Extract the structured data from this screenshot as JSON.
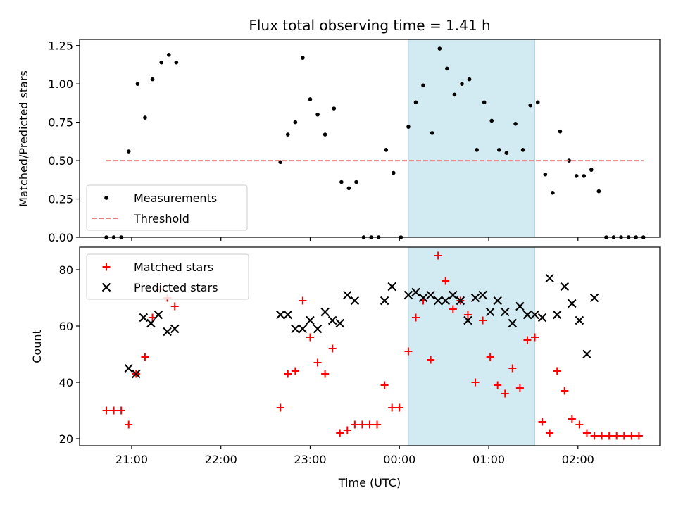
{
  "chart_data": [
    {
      "type": "scatter",
      "title": "Flux total observing time = 1.41 h",
      "xlabel": "",
      "ylabel": "Matched/Predicted stars",
      "xlim": [
        "20:25",
        "02:55"
      ],
      "ylim": [
        0,
        1.29
      ],
      "yticks": [
        "0.00",
        "0.25",
        "0.50",
        "0.75",
        "1.00",
        "1.25"
      ],
      "highlight_interval": [
        "00:06",
        "01:31"
      ],
      "highlight_color": "#add8e6",
      "legend_position": "lower-left",
      "series": [
        {
          "name": "Measurements",
          "marker": "dot",
          "color": "#000000",
          "points": [
            [
              "20:43",
              0.0
            ],
            [
              "20:48",
              0.0
            ],
            [
              "20:53",
              0.0
            ],
            [
              "20:58",
              0.56
            ],
            [
              "21:04",
              1.0
            ],
            [
              "21:09",
              0.78
            ],
            [
              "21:14",
              1.03
            ],
            [
              "21:20",
              1.14
            ],
            [
              "21:25",
              1.19
            ],
            [
              "21:30",
              1.14
            ],
            [
              "22:40",
              0.49
            ],
            [
              "22:45",
              0.67
            ],
            [
              "22:50",
              0.75
            ],
            [
              "22:55",
              1.17
            ],
            [
              "23:00",
              0.9
            ],
            [
              "23:05",
              0.8
            ],
            [
              "23:10",
              0.67
            ],
            [
              "23:16",
              0.84
            ],
            [
              "23:21",
              0.36
            ],
            [
              "23:26",
              0.32
            ],
            [
              "23:31",
              0.36
            ],
            [
              "23:36",
              0.0
            ],
            [
              "23:41",
              0.0
            ],
            [
              "23:46",
              0.0
            ],
            [
              "23:51",
              0.57
            ],
            [
              "23:56",
              0.42
            ],
            [
              "00:01",
              0.0
            ],
            [
              "00:06",
              0.72
            ],
            [
              "00:11",
              0.88
            ],
            [
              "00:16",
              0.99
            ],
            [
              "00:22",
              0.68
            ],
            [
              "00:27",
              1.23
            ],
            [
              "00:32",
              1.1
            ],
            [
              "00:37",
              0.93
            ],
            [
              "00:42",
              1.0
            ],
            [
              "00:47",
              1.03
            ],
            [
              "00:52",
              0.57
            ],
            [
              "00:57",
              0.88
            ],
            [
              "01:02",
              0.76
            ],
            [
              "01:07",
              0.57
            ],
            [
              "01:12",
              0.55
            ],
            [
              "01:18",
              0.74
            ],
            [
              "01:23",
              0.57
            ],
            [
              "01:28",
              0.86
            ],
            [
              "01:33",
              0.88
            ],
            [
              "01:38",
              0.41
            ],
            [
              "01:43",
              0.29
            ],
            [
              "01:48",
              0.69
            ],
            [
              "01:54",
              0.5
            ],
            [
              "01:59",
              0.4
            ],
            [
              "02:04",
              0.4
            ],
            [
              "02:09",
              0.44
            ],
            [
              "02:14",
              0.3
            ],
            [
              "02:19",
              0.0
            ],
            [
              "02:24",
              0.0
            ],
            [
              "02:29",
              0.0
            ],
            [
              "02:34",
              0.0
            ],
            [
              "02:39",
              0.0
            ],
            [
              "02:44",
              0.0
            ]
          ]
        },
        {
          "name": "Threshold",
          "line_style": "dashed",
          "color": "#f08080",
          "points": [
            [
              "20:43",
              0.5
            ],
            [
              "02:44",
              0.5
            ]
          ]
        }
      ]
    },
    {
      "type": "scatter",
      "title": "",
      "xlabel": "Time (UTC)",
      "ylabel": "Count",
      "xlim": [
        "20:25",
        "02:55"
      ],
      "ylim": [
        17.5,
        88
      ],
      "yticks": [
        "20",
        "40",
        "60",
        "80"
      ],
      "xticks": [
        "21:00",
        "22:00",
        "23:00",
        "00:00",
        "01:00",
        "02:00"
      ],
      "highlight_interval": [
        "00:06",
        "01:31"
      ],
      "highlight_color": "#add8e6",
      "legend_position": "upper-left",
      "series": [
        {
          "name": "Matched stars",
          "marker": "plus",
          "color": "#ff0000",
          "points": [
            [
              "20:43",
              30
            ],
            [
              "20:48",
              30
            ],
            [
              "20:53",
              30
            ],
            [
              "20:58",
              25
            ],
            [
              "21:03",
              43
            ],
            [
              "21:09",
              49
            ],
            [
              "21:14",
              63
            ],
            [
              "21:19",
              73
            ],
            [
              "21:24",
              70
            ],
            [
              "21:29",
              67
            ],
            [
              "22:40",
              31
            ],
            [
              "22:45",
              43
            ],
            [
              "22:50",
              44
            ],
            [
              "22:55",
              69
            ],
            [
              "23:00",
              56
            ],
            [
              "23:05",
              47
            ],
            [
              "23:10",
              43
            ],
            [
              "23:15",
              52
            ],
            [
              "23:20",
              22
            ],
            [
              "23:25",
              23
            ],
            [
              "23:30",
              25
            ],
            [
              "23:35",
              25
            ],
            [
              "23:40",
              25
            ],
            [
              "23:45",
              25
            ],
            [
              "23:50",
              39
            ],
            [
              "23:55",
              31
            ],
            [
              "00:00",
              31
            ],
            [
              "00:06",
              51
            ],
            [
              "00:11",
              63
            ],
            [
              "00:16",
              69
            ],
            [
              "00:21",
              48
            ],
            [
              "00:26",
              85
            ],
            [
              "00:31",
              76
            ],
            [
              "00:36",
              66
            ],
            [
              "00:41",
              69
            ],
            [
              "00:46",
              64
            ],
            [
              "00:51",
              40
            ],
            [
              "00:56",
              62
            ],
            [
              "01:01",
              49
            ],
            [
              "01:06",
              39
            ],
            [
              "01:11",
              36
            ],
            [
              "01:16",
              45
            ],
            [
              "01:21",
              38
            ],
            [
              "01:26",
              55
            ],
            [
              "01:31",
              56
            ],
            [
              "01:36",
              26
            ],
            [
              "01:41",
              22
            ],
            [
              "01:46",
              44
            ],
            [
              "01:51",
              37
            ],
            [
              "01:56",
              27
            ],
            [
              "02:01",
              25
            ],
            [
              "02:06",
              22
            ],
            [
              "02:11",
              21
            ],
            [
              "02:16",
              21
            ],
            [
              "02:21",
              21
            ],
            [
              "02:26",
              21
            ],
            [
              "02:31",
              21
            ],
            [
              "02:36",
              21
            ],
            [
              "02:41",
              21
            ]
          ]
        },
        {
          "name": "Predicted stars",
          "marker": "x",
          "color": "#000000",
          "points": [
            [
              "20:58",
              45
            ],
            [
              "21:03",
              43
            ],
            [
              "21:08",
              63
            ],
            [
              "21:13",
              61
            ],
            [
              "21:18",
              64
            ],
            [
              "21:24",
              58
            ],
            [
              "21:29",
              59
            ],
            [
              "22:40",
              64
            ],
            [
              "22:45",
              64
            ],
            [
              "22:50",
              59
            ],
            [
              "22:55",
              59
            ],
            [
              "23:00",
              62
            ],
            [
              "23:05",
              59
            ],
            [
              "23:10",
              65
            ],
            [
              "23:15",
              62
            ],
            [
              "23:20",
              61
            ],
            [
              "23:25",
              71
            ],
            [
              "23:30",
              69
            ],
            [
              "23:50",
              69
            ],
            [
              "23:55",
              74
            ],
            [
              "00:06",
              71
            ],
            [
              "00:11",
              72
            ],
            [
              "00:16",
              70
            ],
            [
              "00:21",
              71
            ],
            [
              "00:26",
              69
            ],
            [
              "00:31",
              69
            ],
            [
              "00:36",
              71
            ],
            [
              "00:41",
              69
            ],
            [
              "00:46",
              62
            ],
            [
              "00:51",
              70
            ],
            [
              "00:56",
              71
            ],
            [
              "01:01",
              65
            ],
            [
              "01:06",
              69
            ],
            [
              "01:11",
              65
            ],
            [
              "01:16",
              61
            ],
            [
              "01:21",
              67
            ],
            [
              "01:26",
              64
            ],
            [
              "01:31",
              64
            ],
            [
              "01:36",
              63
            ],
            [
              "01:41",
              77
            ],
            [
              "01:46",
              64
            ],
            [
              "01:51",
              74
            ],
            [
              "01:56",
              68
            ],
            [
              "02:01",
              62
            ],
            [
              "02:06",
              50
            ],
            [
              "02:11",
              70
            ]
          ]
        }
      ]
    }
  ]
}
